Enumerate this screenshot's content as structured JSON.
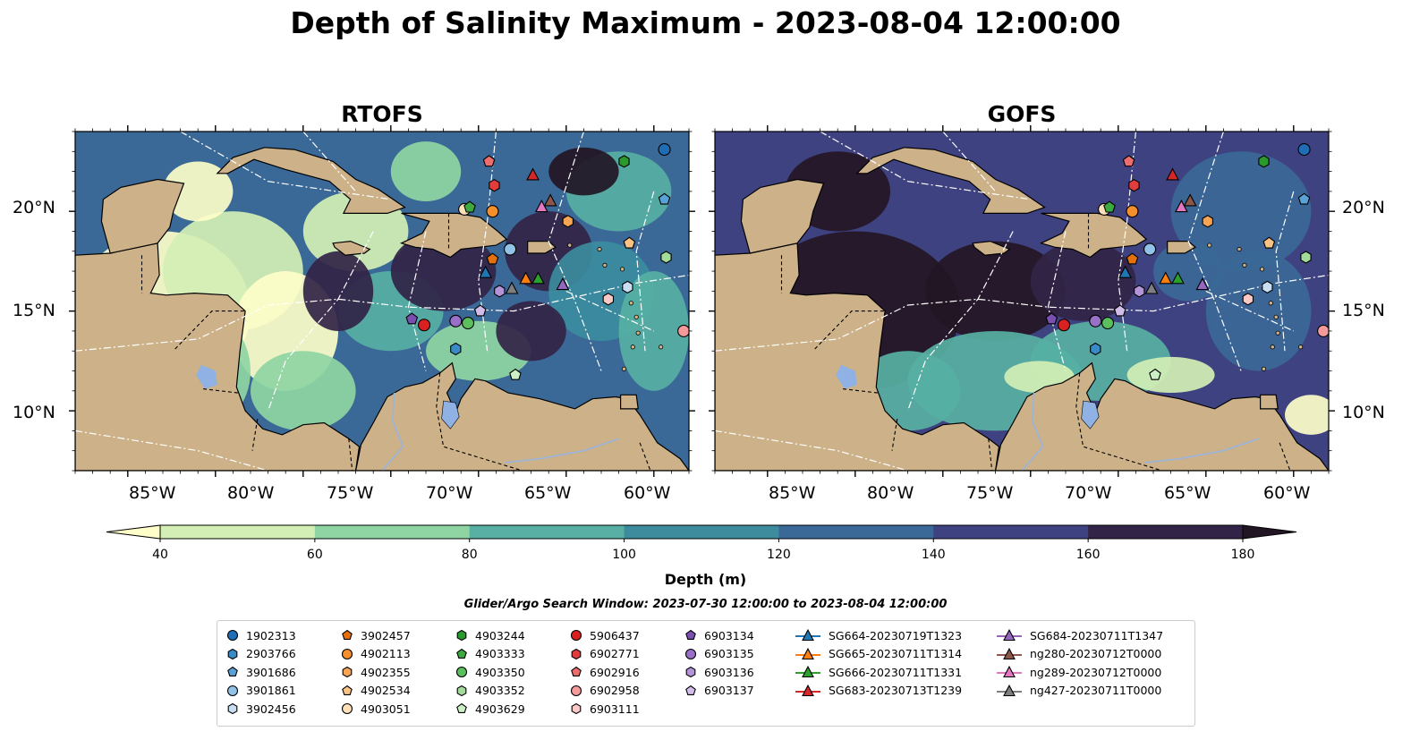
{
  "title": "Depth of Salinity Maximum - 2023-08-04 12:00:00",
  "panels": [
    {
      "name": "RTOFS"
    },
    {
      "name": "GOFS"
    }
  ],
  "map": {
    "lon_range": [
      -93,
      -58
    ],
    "lat_range": [
      7,
      24
    ],
    "lat_ticks": [
      "10°N",
      "15°N",
      "20°N"
    ],
    "lon_ticks": [
      "85°W",
      "80°W",
      "75°W",
      "70°W",
      "65°W",
      "60°W"
    ],
    "colors": {
      "land": "#cdb189",
      "lake": "#8fb1e3",
      "river": "#9db4d7"
    }
  },
  "colorbar": {
    "label": "Depth (m)",
    "ticks": [
      "40",
      "60",
      "80",
      "100",
      "120",
      "140",
      "160",
      "180"
    ],
    "levels": [
      40,
      60,
      80,
      100,
      120,
      140,
      160,
      180
    ],
    "colors": [
      "#fdfec8",
      "#d4efb5",
      "#8fd5a3",
      "#57b0a3",
      "#3c8c9e",
      "#3a6897",
      "#3f4281",
      "#322446",
      "#231624"
    ],
    "extend": "both"
  },
  "search_window": "Glider/Argo Search Window: 2023-07-30 12:00:00 to 2023-08-04 12:00:00",
  "legend": {
    "columns": [
      [
        {
          "label": "1902313",
          "marker": "circle",
          "color": "#1f6eb5"
        },
        {
          "label": "2903766",
          "marker": "hexagon",
          "color": "#3a8ac6"
        },
        {
          "label": "3901686",
          "marker": "pentagon",
          "color": "#5aa2d6"
        },
        {
          "label": "3901861",
          "marker": "circle",
          "color": "#92c3e7"
        },
        {
          "label": "3902456",
          "marker": "hexagon",
          "color": "#c8def2"
        }
      ],
      [
        {
          "label": "3902457",
          "marker": "pentagon",
          "color": "#e4700d"
        },
        {
          "label": "4902113",
          "marker": "circle",
          "color": "#f48f2c"
        },
        {
          "label": "4902355",
          "marker": "hexagon",
          "color": "#f7a555"
        },
        {
          "label": "4902534",
          "marker": "pentagon",
          "color": "#fac383"
        },
        {
          "label": "4903051",
          "marker": "circle",
          "color": "#fde0b8"
        }
      ],
      [
        {
          "label": "4903244",
          "marker": "hexagon",
          "color": "#2a9a2d"
        },
        {
          "label": "4903333",
          "marker": "pentagon",
          "color": "#3caa3f"
        },
        {
          "label": "4903350",
          "marker": "circle",
          "color": "#5bbf5e"
        },
        {
          "label": "4903352",
          "marker": "hexagon",
          "color": "#a2dc98"
        },
        {
          "label": "4903629",
          "marker": "pentagon",
          "color": "#cdefc6"
        }
      ],
      [
        {
          "label": "5906437",
          "marker": "circle",
          "color": "#d92121"
        },
        {
          "label": "6902771",
          "marker": "hexagon",
          "color": "#e23c3c"
        },
        {
          "label": "6902916",
          "marker": "pentagon",
          "color": "#ee6d6d"
        },
        {
          "label": "6902958",
          "marker": "circle",
          "color": "#f59a9a"
        },
        {
          "label": "6903111",
          "marker": "hexagon",
          "color": "#fbc9c5"
        }
      ],
      [
        {
          "label": "6903134",
          "marker": "pentagon",
          "color": "#7a4fb0"
        },
        {
          "label": "6903135",
          "marker": "circle",
          "color": "#9870c7"
        },
        {
          "label": "6903136",
          "marker": "hexagon",
          "color": "#b394d8"
        },
        {
          "label": "6903137",
          "marker": "pentagon",
          "color": "#d2bdea"
        }
      ],
      [
        {
          "label": "SG664-20230719T1323",
          "marker": "triangle",
          "color": "#1f77b4"
        },
        {
          "label": "SG665-20230711T1314",
          "marker": "triangle",
          "color": "#ff7f0e"
        },
        {
          "label": "SG666-20230711T1331",
          "marker": "triangle",
          "color": "#2ca02c"
        },
        {
          "label": "SG683-20230713T1239",
          "marker": "triangle",
          "color": "#d62728"
        }
      ],
      [
        {
          "label": "SG684-20230711T1347",
          "marker": "triangle",
          "color": "#9467bd"
        },
        {
          "label": "ng280-20230712T0000",
          "marker": "triangle",
          "color": "#8c564b"
        },
        {
          "label": "ng289-20230712T0000",
          "marker": "triangle",
          "color": "#e377c2"
        },
        {
          "label": "ng427-20230711T0000",
          "marker": "triangle",
          "color": "#7f7f7f"
        }
      ]
    ]
  },
  "observations": [
    {
      "id": "1902313",
      "lon": -59.4,
      "lat": 23.1
    },
    {
      "id": "2903766",
      "lon": -71.3,
      "lat": 13.1
    },
    {
      "id": "3901686",
      "lon": -59.4,
      "lat": 20.6
    },
    {
      "id": "3901861",
      "lon": -68.2,
      "lat": 18.1
    },
    {
      "id": "3902456",
      "lon": -61.5,
      "lat": 16.2
    },
    {
      "id": "3902457",
      "lon": -69.2,
      "lat": 17.6
    },
    {
      "id": "4902113",
      "lon": -69.2,
      "lat": 20.0
    },
    {
      "id": "4902355",
      "lon": -64.9,
      "lat": 19.5
    },
    {
      "id": "4902534",
      "lon": -61.4,
      "lat": 18.4
    },
    {
      "id": "4903051",
      "lon": -70.8,
      "lat": 20.1
    },
    {
      "id": "4903244",
      "lon": -61.7,
      "lat": 22.5
    },
    {
      "id": "4903333",
      "lon": -70.5,
      "lat": 20.2
    },
    {
      "id": "4903350",
      "lon": -70.6,
      "lat": 14.4
    },
    {
      "id": "4903352",
      "lon": -59.3,
      "lat": 17.7
    },
    {
      "id": "4903629",
      "lon": -67.9,
      "lat": 11.8
    },
    {
      "id": "5906437",
      "lon": -73.1,
      "lat": 14.3
    },
    {
      "id": "6902771",
      "lon": -69.1,
      "lat": 21.3
    },
    {
      "id": "6902916",
      "lon": -69.4,
      "lat": 22.5
    },
    {
      "id": "6902958",
      "lon": -58.3,
      "lat": 14.0
    },
    {
      "id": "6903111",
      "lon": -62.6,
      "lat": 15.6
    },
    {
      "id": "6903134",
      "lon": -73.8,
      "lat": 14.6
    },
    {
      "id": "6903135",
      "lon": -71.3,
      "lat": 14.5
    },
    {
      "id": "6903136",
      "lon": -68.8,
      "lat": 16.0
    },
    {
      "id": "6903137",
      "lon": -69.9,
      "lat": 15.0
    },
    {
      "id": "SG664-20230719T1323",
      "lon": -69.6,
      "lat": 16.9
    },
    {
      "id": "SG665-20230711T1314",
      "lon": -67.3,
      "lat": 16.6
    },
    {
      "id": "SG666-20230711T1331",
      "lon": -66.6,
      "lat": 16.6
    },
    {
      "id": "SG683-20230713T1239",
      "lon": -66.9,
      "lat": 21.8
    },
    {
      "id": "SG684-20230711T1347",
      "lon": -65.2,
      "lat": 16.3
    },
    {
      "id": "ng280-20230712T0000",
      "lon": -65.9,
      "lat": 20.5
    },
    {
      "id": "ng289-20230712T0000",
      "lon": -66.4,
      "lat": 20.2
    },
    {
      "id": "ng427-20230711T0000",
      "lon": -68.1,
      "lat": 16.1
    }
  ]
}
